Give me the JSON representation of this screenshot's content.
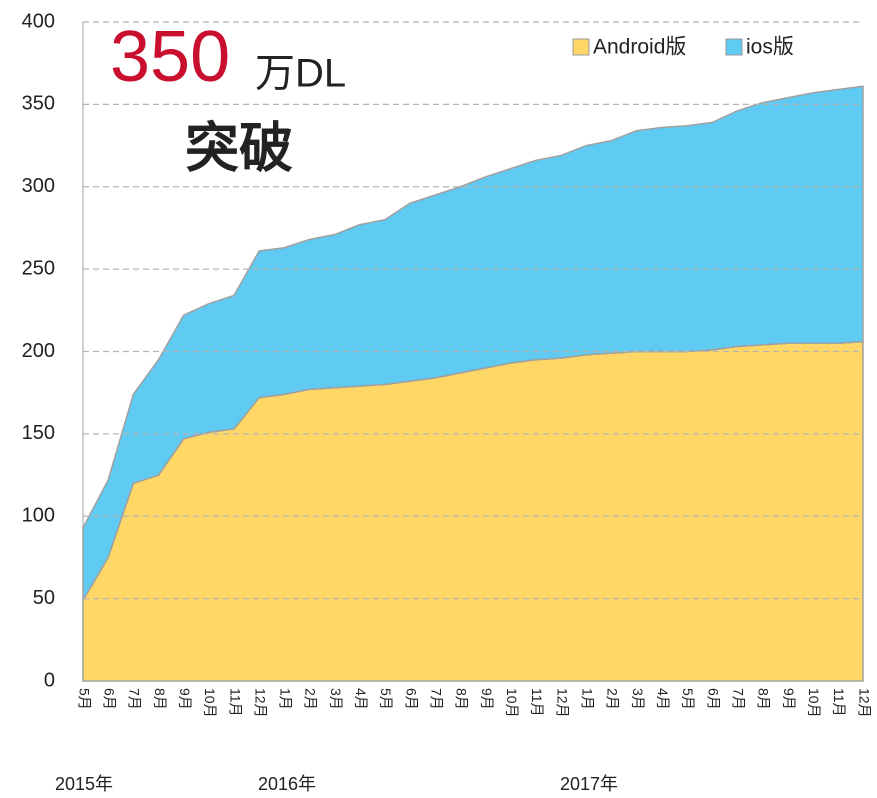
{
  "chart_data": {
    "type": "stacked-area",
    "annotation": {
      "number": "350",
      "unit": "万DL",
      "text": "突破"
    },
    "categories": [
      "5月",
      "6月",
      "7月",
      "8月",
      "9月",
      "10月",
      "11月",
      "12月",
      "1月",
      "2月",
      "3月",
      "4月",
      "5月",
      "6月",
      "7月",
      "8月",
      "9月",
      "10月",
      "11月",
      "12月",
      "1月",
      "2月",
      "3月",
      "4月",
      "5月",
      "6月",
      "7月",
      "8月",
      "9月",
      "10月",
      "11月",
      "12月"
    ],
    "years": [
      "2015年",
      "2016年",
      "2017年"
    ],
    "series": [
      {
        "name": "Android版",
        "color": "#fed766",
        "values": [
          49,
          75,
          120,
          125,
          147,
          151,
          153,
          172,
          174,
          177,
          178,
          179,
          180,
          182,
          184,
          187,
          190,
          193,
          195,
          196,
          198,
          199,
          200,
          200,
          200,
          201,
          203,
          204,
          205,
          205,
          205,
          206
        ]
      },
      {
        "name": "ios版",
        "color": "#5fcbf3",
        "values": [
          44,
          47,
          54,
          70,
          75,
          78,
          81,
          89,
          89,
          91,
          93,
          98,
          100,
          108,
          111,
          113,
          116,
          118,
          121,
          123,
          127,
          129,
          134,
          136,
          137,
          138,
          143,
          147,
          149,
          152,
          154,
          155
        ]
      }
    ],
    "ylim": [
      0,
      400
    ],
    "yticks": [
      0,
      50,
      100,
      150,
      200,
      250,
      300,
      350,
      400
    ],
    "grid": true
  }
}
